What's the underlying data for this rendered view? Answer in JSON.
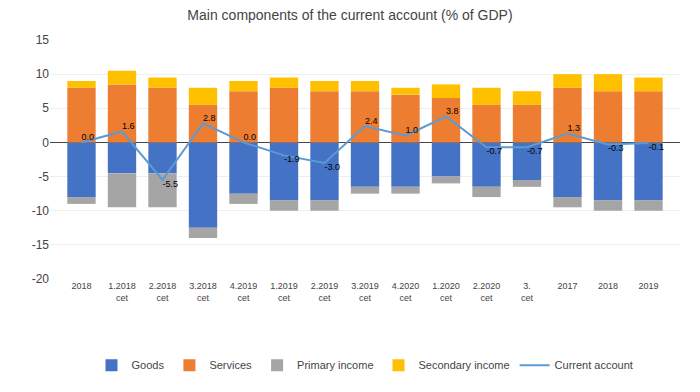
{
  "chart_data": {
    "type": "bar",
    "title": "Main components of the current account (% of GDP)",
    "categories": [
      "2018",
      "1.2018\ncet",
      "2.2018\ncet",
      "3.2018\ncet",
      "4.2019\ncet",
      "1.2019\ncet",
      "2.2019\ncet",
      "3.2019\ncet",
      "4.2020\ncet",
      "1.2020\ncet",
      "2.2020\ncet",
      "3.\ncet",
      "2017",
      "2018",
      "2019"
    ],
    "series": [
      {
        "name": "Goods",
        "color": "#4472C4",
        "values": [
          -8.0,
          -4.5,
          -4.5,
          -12.5,
          -7.5,
          -8.5,
          -8.5,
          -6.5,
          -6.5,
          -5.0,
          -6.5,
          -5.5,
          -8.0,
          -8.5,
          -8.5
        ]
      },
      {
        "name": "Services",
        "color": "#ED7D31",
        "values": [
          8.0,
          8.5,
          8.0,
          5.5,
          7.5,
          8.0,
          7.5,
          7.5,
          7.0,
          6.5,
          5.5,
          5.5,
          8.0,
          7.5,
          7.5
        ]
      },
      {
        "name": "Primary income",
        "color": "#A5A5A5",
        "values": [
          -1.0,
          -5.0,
          -5.0,
          -1.5,
          -1.5,
          -1.5,
          -1.5,
          -1.0,
          -1.0,
          -1.0,
          -1.5,
          -1.0,
          -1.5,
          -1.5,
          -1.5
        ]
      },
      {
        "name": "Secondary income",
        "color": "#FFC000",
        "values": [
          1.0,
          2.0,
          1.5,
          2.5,
          1.5,
          1.5,
          1.5,
          1.5,
          1.0,
          2.0,
          2.5,
          2.0,
          2.0,
          2.5,
          2.0
        ]
      },
      {
        "name": "Current account",
        "type": "line",
        "color": "#5B9BD5",
        "data_labels": true,
        "values": [
          0.0,
          1.6,
          -5.5,
          2.8,
          0.0,
          -1.9,
          -3.0,
          2.4,
          1.0,
          3.8,
          -0.7,
          -0.7,
          1.3,
          -0.3,
          -0.1
        ],
        "value_labels": [
          "0.0",
          "1.6",
          "-5.5",
          "2.8",
          "0.0",
          "-1.9",
          "-3.0",
          "2.4",
          "1.0",
          "3.8",
          "-0.7",
          "-0.7",
          "1.3",
          "-0.3",
          "-0.1"
        ]
      }
    ],
    "stacked": true,
    "ylim": [
      -20,
      15
    ],
    "yticks": [
      15,
      10,
      5,
      0,
      -5,
      -10,
      -15,
      -20
    ],
    "grid": true,
    "legend": "bottom"
  }
}
